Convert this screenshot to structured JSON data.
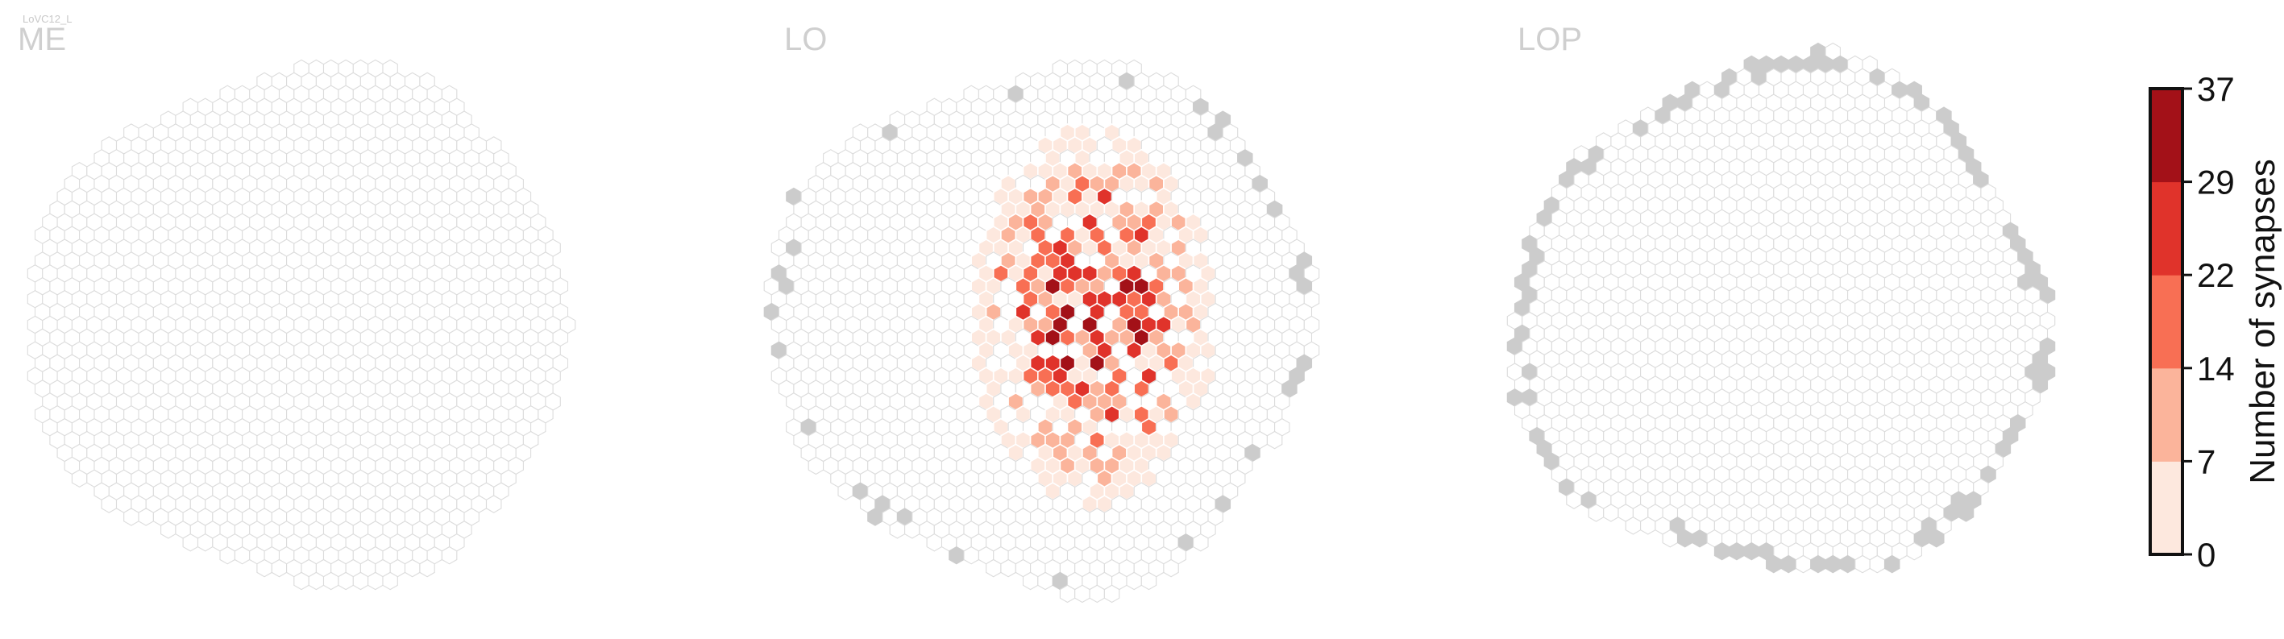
{
  "cell_type_label": "LoVC12_L",
  "regions": [
    {
      "name": "ME",
      "cx": 0,
      "cy": 0,
      "r": 0
    },
    {
      "name": "LO"
    },
    {
      "name": "LOP"
    }
  ],
  "colorbar": {
    "label": "Number of synapses",
    "ticks": [
      "0",
      "7",
      "14",
      "22",
      "29",
      "37"
    ],
    "colors": [
      "#fde8de",
      "#fbb49b",
      "#f86f54",
      "#e0332b",
      "#a31118"
    ]
  },
  "colors": {
    "empty_outline": "#dcdcdc",
    "outside_fill": "#cccccc",
    "background": "#ffffff"
  },
  "chart_data": {
    "type": "heatmap",
    "value_label": "Number of synapses",
    "value_range": [
      0,
      37
    ],
    "color_bins": [
      [
        0,
        7
      ],
      [
        7,
        14
      ],
      [
        14,
        22
      ],
      [
        22,
        29
      ],
      [
        29,
        37
      ]
    ],
    "panels": [
      {
        "region": "ME",
        "columns_with_synapses": 0
      },
      {
        "region": "LO",
        "columns_with_synapses": "many (right-center cluster)"
      },
      {
        "region": "LOP",
        "columns_with_synapses": 0
      }
    ]
  }
}
